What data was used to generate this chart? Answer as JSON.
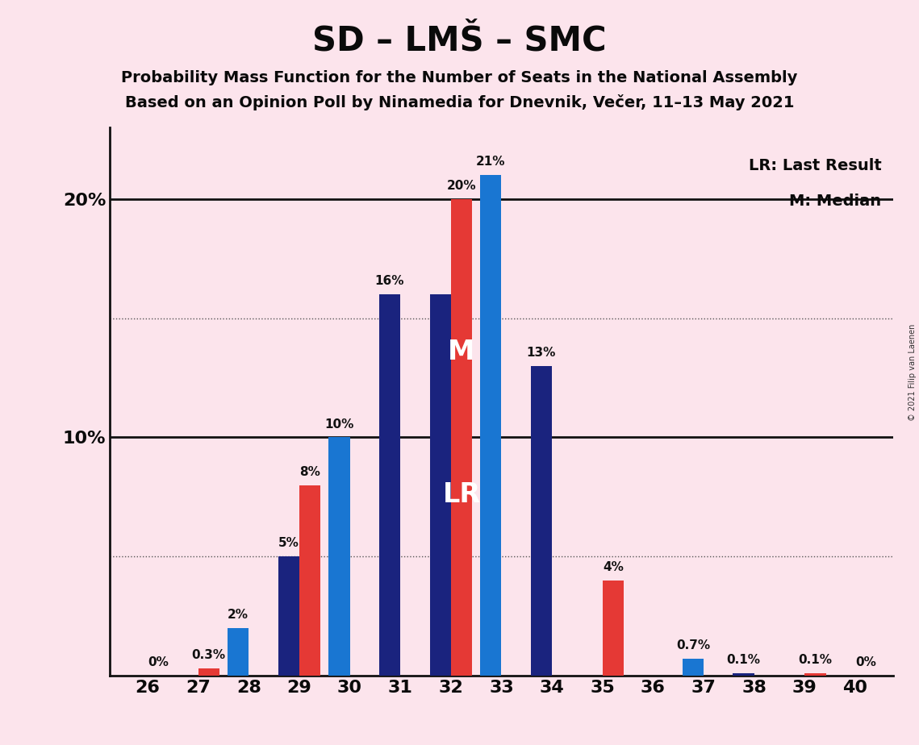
{
  "title": "SD – LMŠ – SMC",
  "subtitle1": "Probability Mass Function for the Number of Seats in the National Assembly",
  "subtitle2": "Based on an Opinion Poll by Ninamedia for Dnevnik, Večer, 11–13 May 2021",
  "copyright": "© 2021 Filip van Laenen",
  "seats": [
    26,
    27,
    28,
    29,
    30,
    31,
    32,
    33,
    34,
    35,
    36,
    37,
    38,
    39,
    40
  ],
  "pmf_values": [
    0.0,
    0.0,
    2.0,
    5.0,
    10.0,
    16.0,
    16.0,
    21.0,
    13.0,
    0.0,
    0.0,
    0.7,
    0.1,
    0.0,
    0.0
  ],
  "lr_values": [
    0.0,
    0.3,
    0.0,
    8.0,
    0.0,
    0.0,
    20.0,
    0.0,
    0.0,
    4.0,
    0.0,
    0.0,
    0.0,
    0.1,
    0.0
  ],
  "pmf_labels": [
    "",
    "",
    "2%",
    "5%",
    "10%",
    "16%",
    "",
    "21%",
    "13%",
    "",
    "",
    "0.7%",
    "0.1%",
    "",
    ""
  ],
  "lr_labels": [
    "0%",
    "0.3%",
    "",
    "8%",
    "",
    "",
    "20%",
    "",
    "",
    "4%",
    "",
    "",
    "",
    "0.1%",
    "0%"
  ],
  "pmf_colors": [
    "#1a237e",
    "#1a237e",
    "#1976d2",
    "#1a237e",
    "#1976d2",
    "#1a237e",
    "#1a237e",
    "#1976d2",
    "#1a237e",
    "#1a237e",
    "#1a237e",
    "#1976d2",
    "#1a237e",
    "#1a237e",
    "#1a237e"
  ],
  "lr_color": "#e53935",
  "background_color": "#fce4ec",
  "ylim": [
    0,
    23
  ],
  "legend_lr": "LR: Last Result",
  "legend_m": "M: Median",
  "bar_width": 0.42,
  "m_label_seat_idx": 6,
  "lr_label_seat_idx": 6
}
